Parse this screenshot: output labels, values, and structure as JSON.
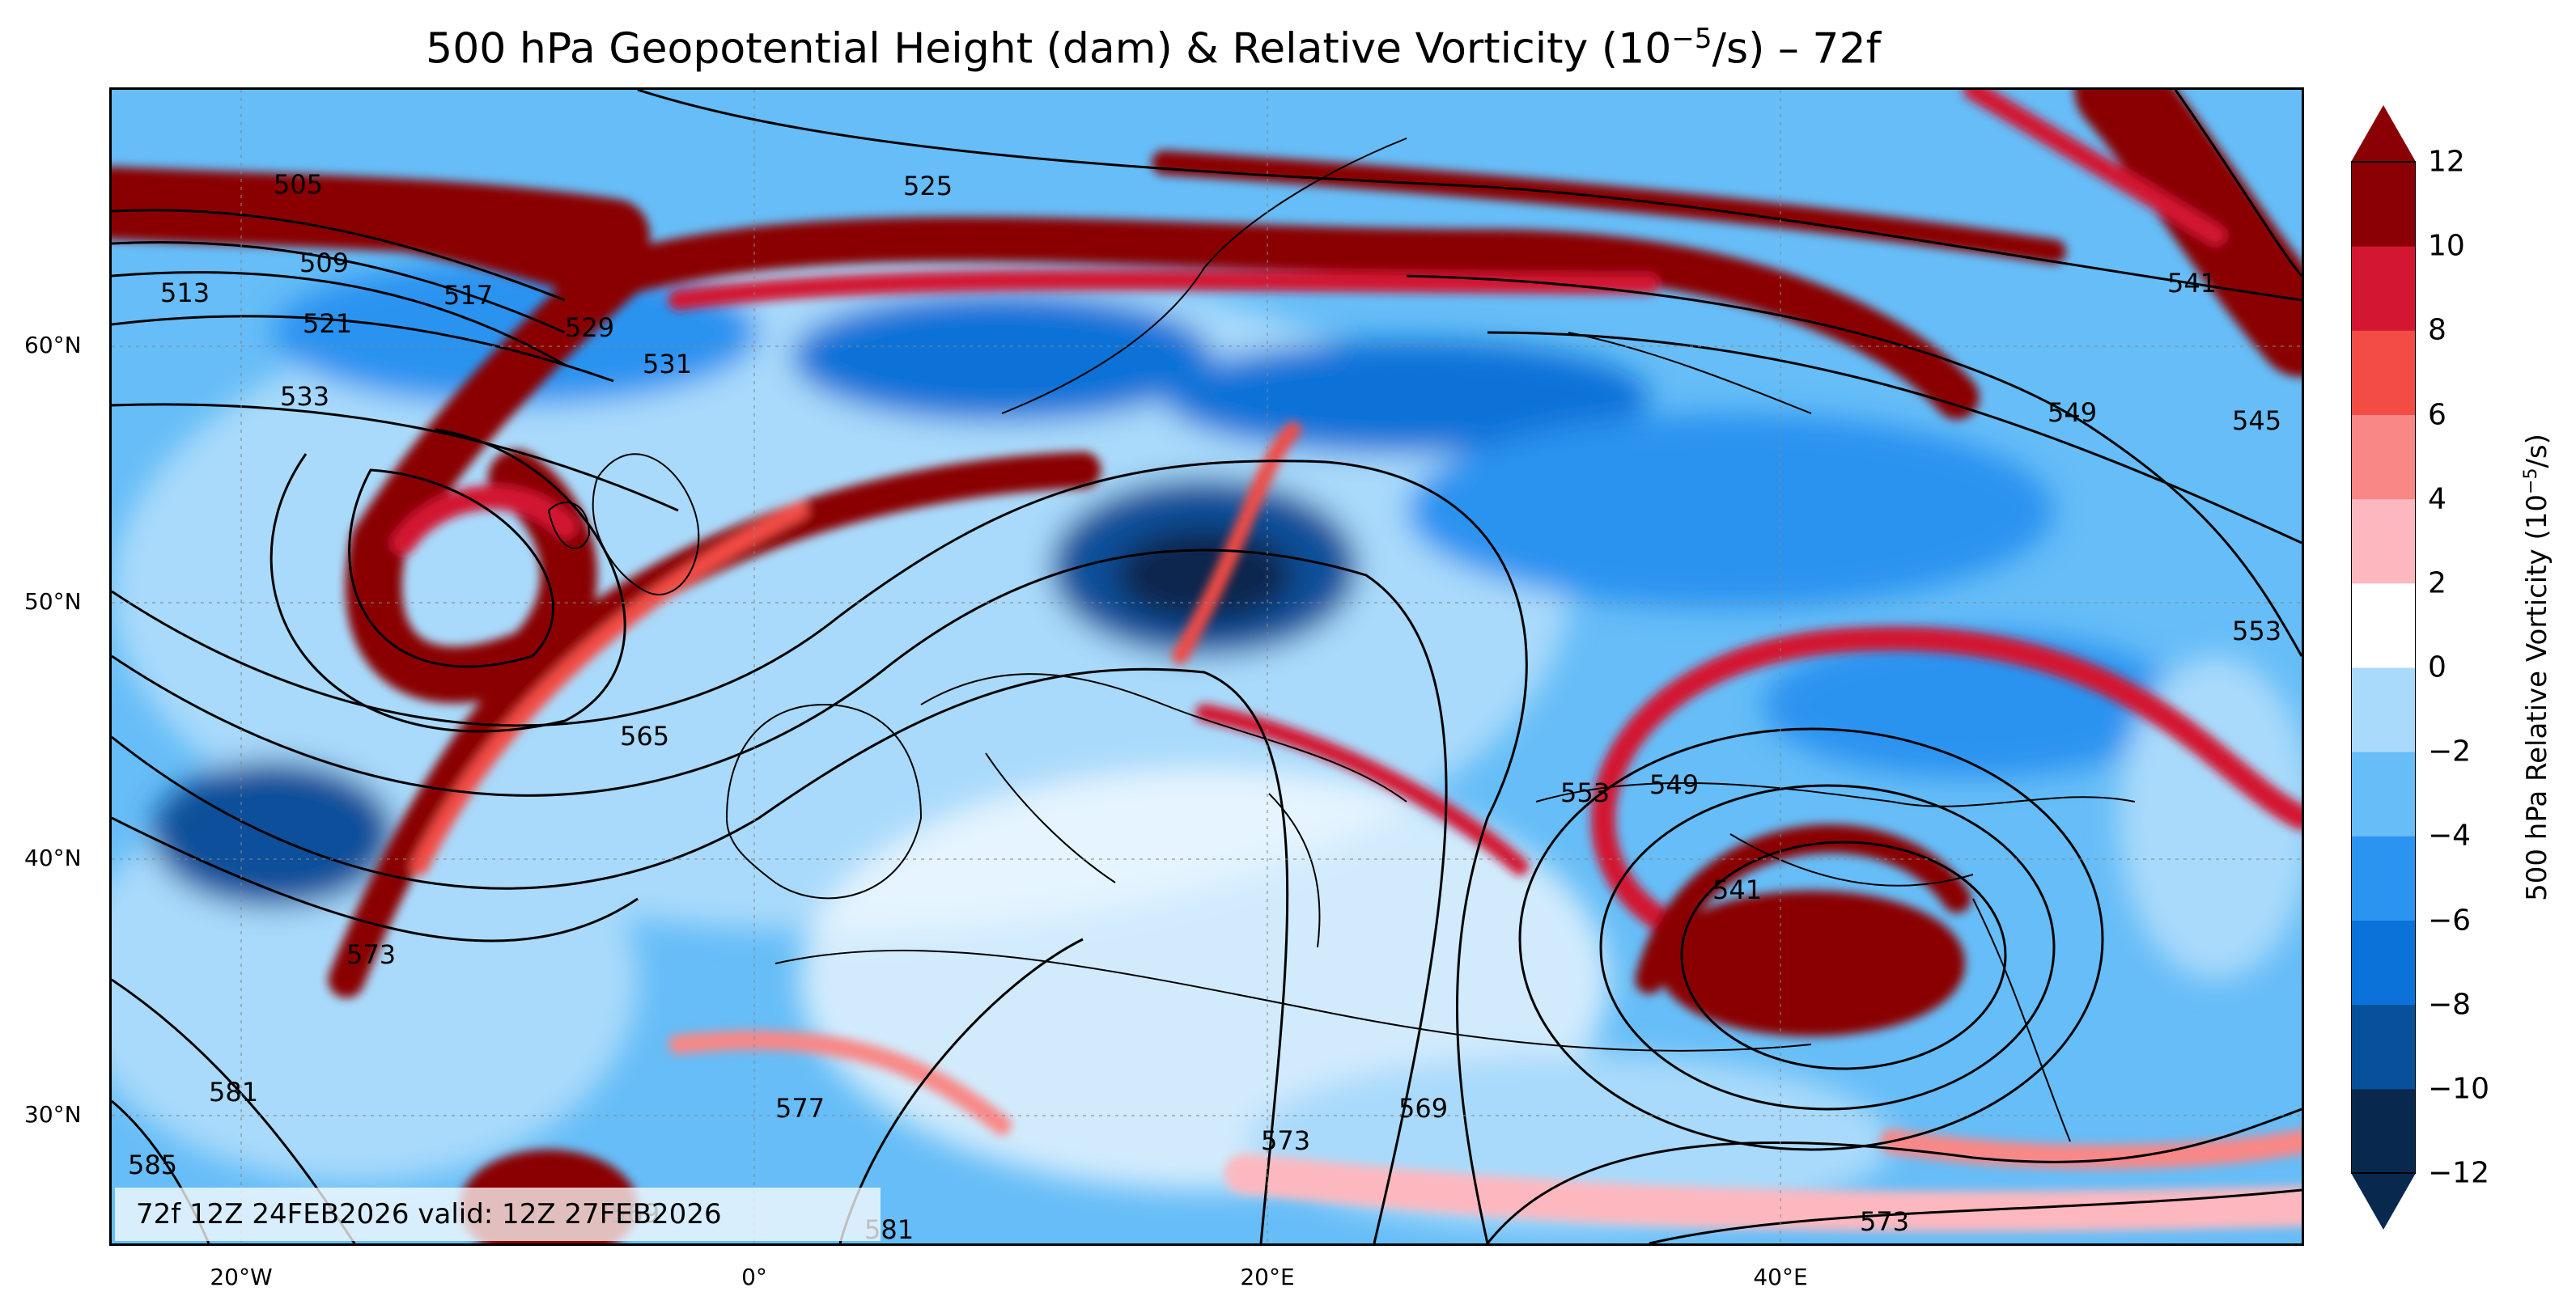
{
  "title": {
    "main": "500 hPa Geopotential Height (dam) & Relative Vorticity (10",
    "exp": "−5",
    "end": "/s) – 72f"
  },
  "info": "72f 12Z 24FEB2026 valid: 12Z 27FEB2026",
  "lat_labels": [
    "60°N",
    "50°N",
    "40°N",
    "30°N"
  ],
  "lon_labels": [
    "20°W",
    "0°",
    "20°E",
    "40°E"
  ],
  "contour_labels": [
    "505",
    "509",
    "513",
    "517",
    "521",
    "525",
    "529",
    "531",
    "533",
    "541",
    "545",
    "549",
    "553",
    "553",
    "549",
    "541",
    "565",
    "569",
    "573",
    "573",
    "573",
    "577",
    "581",
    "581",
    "585",
    "569"
  ],
  "colorbar": {
    "label_main": "500 hPa Relative Vorticity (10",
    "label_exp": "−5",
    "label_end": "/s)",
    "ticks": [
      "12",
      "10",
      "8",
      "6",
      "4",
      "2",
      "0",
      "−2",
      "−4",
      "−6",
      "−8",
      "−10",
      "−12"
    ],
    "colors": [
      "#08284e",
      "#08509a",
      "#0a72d8",
      "#2b93f0",
      "#66bdf7",
      "#a9dafb",
      "#ffffff",
      "#fdb8bf",
      "#f98786",
      "#f24c45",
      "#d31733",
      "#8a0005"
    ],
    "over_color": "#8a0005",
    "under_color": "#08284e"
  },
  "colors": {
    "red_max": "#8a0005",
    "red_mid": "#d31733",
    "red_light": "#f98786",
    "pink": "#fdb8bf",
    "blue_light": "#a9dafb",
    "blue_mid": "#2b93f0",
    "blue_dark": "#08509a",
    "navy": "#08284e"
  }
}
